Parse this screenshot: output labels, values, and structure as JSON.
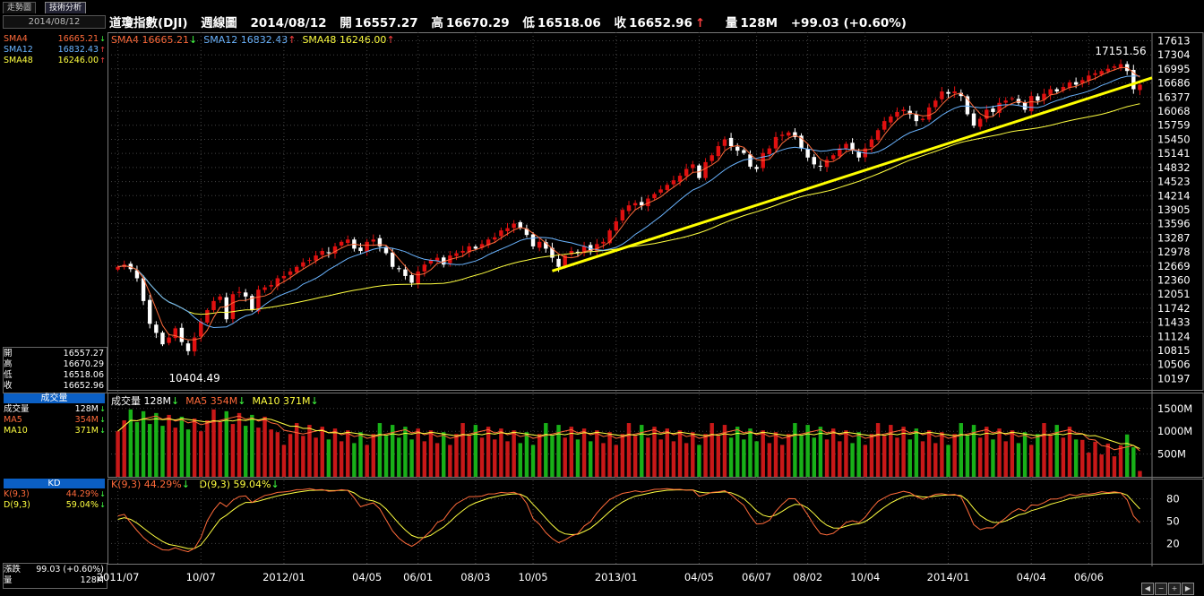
{
  "tabs": [
    "走勢圖",
    "技術分析"
  ],
  "sidebar": {
    "date": "2014/08/12",
    "sma": [
      {
        "label": "SMA4",
        "value": "16665.21",
        "arrow": "↓",
        "color": "#ff6a3a"
      },
      {
        "label": "SMA12",
        "value": "16832.43",
        "arrow": "↑",
        "color": "#6ab4ff"
      },
      {
        "label": "SMA48",
        "value": "16246.00",
        "arrow": "↑",
        "color": "#ffff40"
      }
    ],
    "ohlc": [
      {
        "label": "開",
        "value": "16557.27"
      },
      {
        "label": "高",
        "value": "16670.29"
      },
      {
        "label": "低",
        "value": "16518.06"
      },
      {
        "label": "收",
        "value": "16652.96"
      }
    ],
    "volume_head": "成交量",
    "volume": [
      {
        "label": "成交量",
        "value": "128M",
        "arrow": "↓",
        "color": "#ffffff"
      },
      {
        "label": "MA5",
        "value": "354M",
        "arrow": "↓",
        "color": "#ff6a3a"
      },
      {
        "label": "MA10",
        "value": "371M",
        "arrow": "↓",
        "color": "#ffff40"
      }
    ],
    "kd_head": "KD",
    "kd": [
      {
        "label": "K(9,3)",
        "value": "44.29%",
        "arrow": "↓",
        "color": "#ff6a3a"
      },
      {
        "label": "D(9,3)",
        "value": "59.04%",
        "arrow": "↓",
        "color": "#ffff40"
      }
    ],
    "change_label": "漲跌",
    "change_value": "99.03 (+0.60%)",
    "qty_label": "量",
    "qty_value": "128M"
  },
  "header": {
    "name": "道瓊指數(DJI)",
    "period": "週線圖",
    "date": "2014/08/12",
    "open_label": "開",
    "open": "16557.27",
    "high_label": "高",
    "high": "16670.29",
    "low_label": "低",
    "low": "16518.06",
    "close_label": "收",
    "close": "16652.96",
    "close_arrow": "↑",
    "vol_label": "量",
    "vol": "128M",
    "change": "+99.03 (+0.60%)"
  },
  "legend_price": [
    {
      "label": "SMA4",
      "value": "16665.21",
      "arrow": "↓",
      "color": "#ff6a3a"
    },
    {
      "label": "SMA12",
      "value": "16832.43",
      "arrow": "↑",
      "color": "#6ab4ff"
    },
    {
      "label": "SMA48",
      "value": "16246.00",
      "arrow": "↑",
      "color": "#ffff40"
    }
  ],
  "legend_volume": [
    {
      "label": "成交量",
      "value": "128M",
      "arrow": "↓",
      "color": "#ffffff"
    },
    {
      "label": "MA5",
      "value": "354M",
      "arrow": "↓",
      "color": "#ff6a3a"
    },
    {
      "label": "MA10",
      "value": "371M",
      "arrow": "↓",
      "color": "#ffff40"
    }
  ],
  "legend_kd": [
    {
      "label": "K(9,3)",
      "value": "44.29%",
      "arrow": "↓",
      "color": "#ff6a3a"
    },
    {
      "label": "D(9,3)",
      "value": "59.04%",
      "arrow": "↓",
      "color": "#ffff40"
    }
  ],
  "colors": {
    "up": "#e01010",
    "down": "#ffffff",
    "vol_up": "#c81818",
    "vol_down": "#18b018",
    "sma4": "#ff6a3a",
    "sma12": "#6ab4ff",
    "sma48": "#ffff40",
    "trend": "#ffff00",
    "grid": "#444444"
  },
  "chart_data": {
    "type": "candlestick",
    "title": "道瓊指數(DJI) 週線圖",
    "price_axis": {
      "ticks": [
        17613,
        17304,
        16995,
        16686,
        16377,
        16068,
        15759,
        15450,
        15141,
        14832,
        14523,
        14214,
        13905,
        13596,
        13287,
        12978,
        12669,
        12360,
        12051,
        11742,
        11433,
        11124,
        10815,
        10506,
        10197
      ],
      "range": [
        9950,
        17800
      ]
    },
    "volume_axis": {
      "ticks": [
        "1500M",
        "1000M",
        "500M"
      ],
      "range": [
        0,
        1850
      ]
    },
    "kd_axis": {
      "ticks": [
        80,
        50,
        20
      ],
      "range": [
        0,
        100
      ]
    },
    "x_ticks": [
      {
        "label": "2011/07",
        "index": 0
      },
      {
        "label": "10/07",
        "index": 13
      },
      {
        "label": "2012/01",
        "index": 26
      },
      {
        "label": "04/05",
        "index": 39
      },
      {
        "label": "06/01",
        "index": 47
      },
      {
        "label": "08/03",
        "index": 56
      },
      {
        "label": "10/05",
        "index": 65
      },
      {
        "label": "2013/01",
        "index": 78
      },
      {
        "label": "04/05",
        "index": 91
      },
      {
        "label": "06/07",
        "index": 100
      },
      {
        "label": "08/02",
        "index": 108
      },
      {
        "label": "10/04",
        "index": 117
      },
      {
        "label": "2014/01",
        "index": 130
      },
      {
        "label": "04/04",
        "index": 143
      },
      {
        "label": "06/06",
        "index": 152
      }
    ],
    "annotations": [
      {
        "text": "17151.56",
        "index": 157,
        "value": 17151.56
      },
      {
        "text": "10404.49",
        "index": 12,
        "value": 10404.49
      }
    ],
    "closes": [
      12650,
      12700,
      12600,
      12400,
      11900,
      11400,
      11200,
      10950,
      11100,
      11300,
      11000,
      10800,
      11100,
      11450,
      11700,
      11900,
      12000,
      11500,
      12050,
      12100,
      12000,
      11700,
      12150,
      12200,
      12250,
      12400,
      12450,
      12550,
      12650,
      12750,
      12800,
      12900,
      13000,
      12950,
      13100,
      13200,
      13250,
      13050,
      13000,
      13200,
      13250,
      13100,
      12950,
      12650,
      12600,
      12450,
      12300,
      12550,
      12700,
      12800,
      12850,
      12700,
      12900,
      12950,
      13000,
      13100,
      13050,
      13150,
      13250,
      13300,
      13450,
      13500,
      13600,
      13500,
      13350,
      13100,
      13200,
      13050,
      12850,
      12650,
      12900,
      13000,
      12950,
      13100,
      13000,
      13150,
      13200,
      13450,
      13650,
      13900,
      14000,
      14050,
      14000,
      14150,
      14250,
      14350,
      14450,
      14550,
      14650,
      14800,
      14900,
      14600,
      14950,
      15100,
      15300,
      15450,
      15300,
      15200,
      15150,
      14850,
      14800,
      15150,
      15250,
      15500,
      15550,
      15600,
      15500,
      15250,
      15050,
      14900,
      14850,
      15000,
      15100,
      15250,
      15350,
      15200,
      15050,
      15250,
      15450,
      15650,
      15850,
      15950,
      16050,
      16100,
      16000,
      15850,
      15900,
      16150,
      16300,
      16500,
      16450,
      16500,
      16400,
      16000,
      15750,
      15900,
      16100,
      16050,
      16250,
      16300,
      16350,
      16250,
      16100,
      16400,
      16300,
      16450,
      16550,
      16500,
      16600,
      16700,
      16650,
      16750,
      16850,
      16900,
      16950,
      17000,
      17050,
      17100,
      16950,
      16550,
      16650
    ]
  }
}
